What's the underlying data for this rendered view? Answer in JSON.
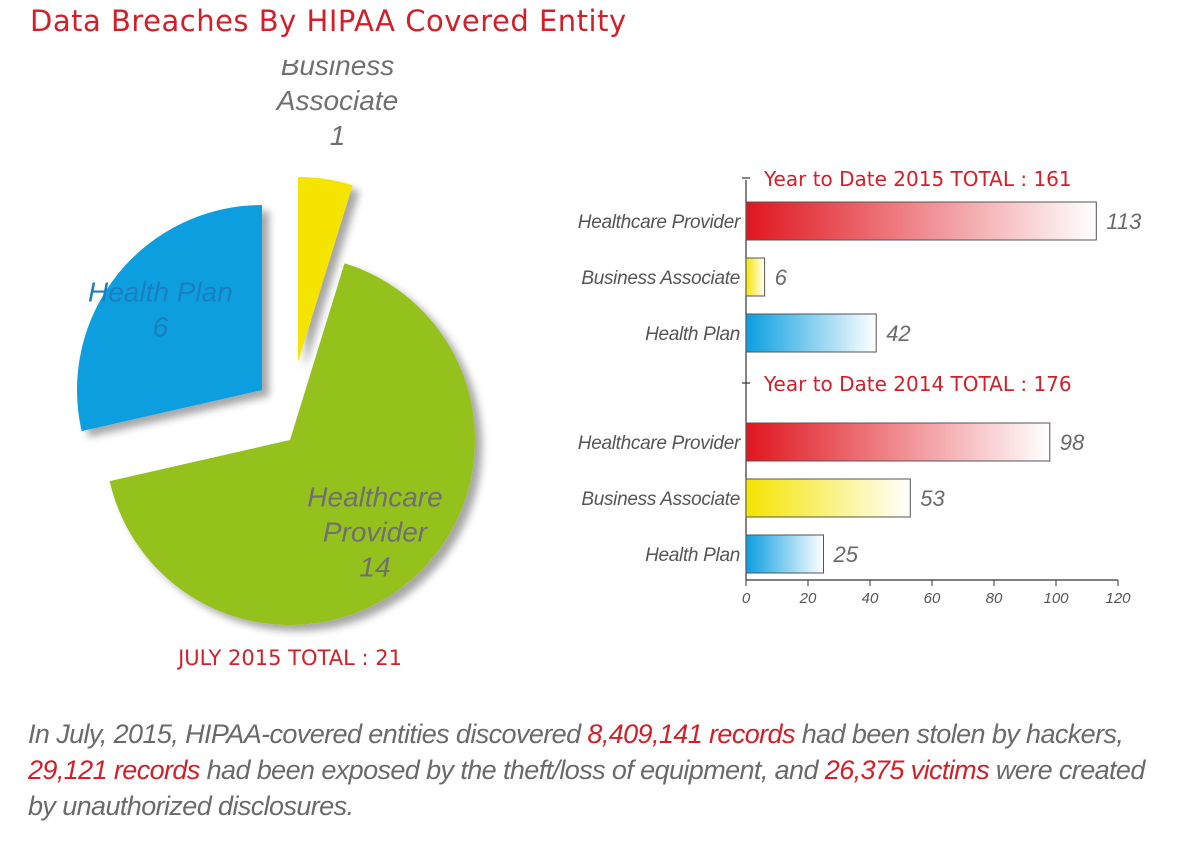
{
  "title": "Data Breaches By HIPAA Covered Entity",
  "colors": {
    "accent_red": "#d0202a",
    "health_plan_blue": "#0a9ee0",
    "business_associate_yellow": "#f5e400",
    "healthcare_provider_green": "#95c11f",
    "label_gray": "#707070"
  },
  "chart_data": [
    {
      "type": "pie",
      "title": "JULY 2015 TOTAL : 21",
      "slices": [
        {
          "label": "Business\nAssociate",
          "value": 1,
          "color": "#f5e400"
        },
        {
          "label": "Healthcare\nProvider",
          "value": 14,
          "color": "#95c11f"
        },
        {
          "label": "Health Plan",
          "value": 6,
          "color": "#0a9ee0"
        }
      ]
    },
    {
      "type": "bar",
      "orientation": "horizontal",
      "xlim": [
        0,
        120
      ],
      "xticks": [
        0,
        20,
        40,
        60,
        80,
        100,
        120
      ],
      "groups": [
        {
          "title": "Year to Date 2015 TOTAL : 161",
          "bars": [
            {
              "label": "Healthcare Provider",
              "value": 113,
              "color": "#e0161f"
            },
            {
              "label": "Business Associate",
              "value": 6,
              "color": "#f5e400"
            },
            {
              "label": "Health Plan",
              "value": 42,
              "color": "#0a9ee0"
            }
          ]
        },
        {
          "title": "Year to Date 2014 TOTAL : 176",
          "bars": [
            {
              "label": "Healthcare Provider",
              "value": 98,
              "color": "#e0161f"
            },
            {
              "label": "Business Associate",
              "value": 53,
              "color": "#f5e400"
            },
            {
              "label": "Health Plan",
              "value": 25,
              "color": "#0a9ee0"
            }
          ]
        }
      ]
    }
  ],
  "summary": {
    "p1": "In July, 2015, HIPAA-covered entities discovered ",
    "h1": "8,409,141 records",
    "p2": " had been stolen by hackers, ",
    "h2": "29,121 records",
    "p3": " had been exposed by the theft/loss of equipment, and ",
    "h3": "26,375 victims",
    "p4": " were created by unauthorized disclosures."
  }
}
